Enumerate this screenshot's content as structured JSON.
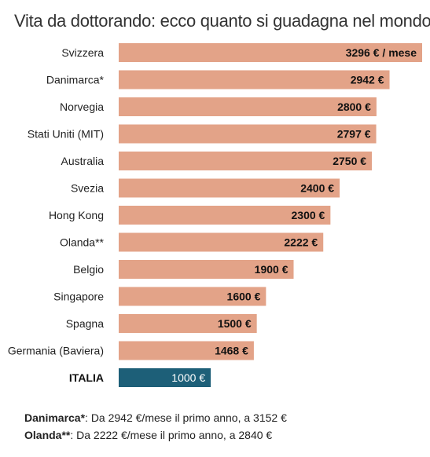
{
  "title": "Vita da dottorando: ecco quanto si guadagna nel mondo",
  "colors": {
    "bar": "#e3a388",
    "highlight": "#1d5f78"
  },
  "chart_data": {
    "type": "bar",
    "orientation": "horizontal",
    "categories": [
      "Svizzera",
      "Danimarca*",
      "Norvegia",
      "Stati Uniti (MIT)",
      "Australia",
      "Svezia",
      "Hong Kong",
      "Olanda**",
      "Belgio",
      "Singapore",
      "Spagna",
      "Germania (Baviera)",
      "ITALIA"
    ],
    "values": [
      3296,
      2942,
      2800,
      2797,
      2750,
      2400,
      2300,
      2222,
      1900,
      1600,
      1500,
      1468,
      1000
    ],
    "value_labels": [
      "3296 € / mese",
      "2942 €",
      "2800 €",
      "2797 €",
      "2750 €",
      "2400 €",
      "2300 €",
      "2222 €",
      "1900 €",
      "1600 €",
      "1500 €",
      "1468 €",
      "1000 €"
    ],
    "highlight": "ITALIA",
    "xlim": [
      0,
      3296
    ]
  },
  "notes": [
    {
      "label": "Danimarca*",
      "text": ": Da 2942 €/mese il primo anno, a 3152 €"
    },
    {
      "label": "Olanda**",
      "text": ": Da 2222 €/mese il primo anno, a 2840 €"
    }
  ]
}
